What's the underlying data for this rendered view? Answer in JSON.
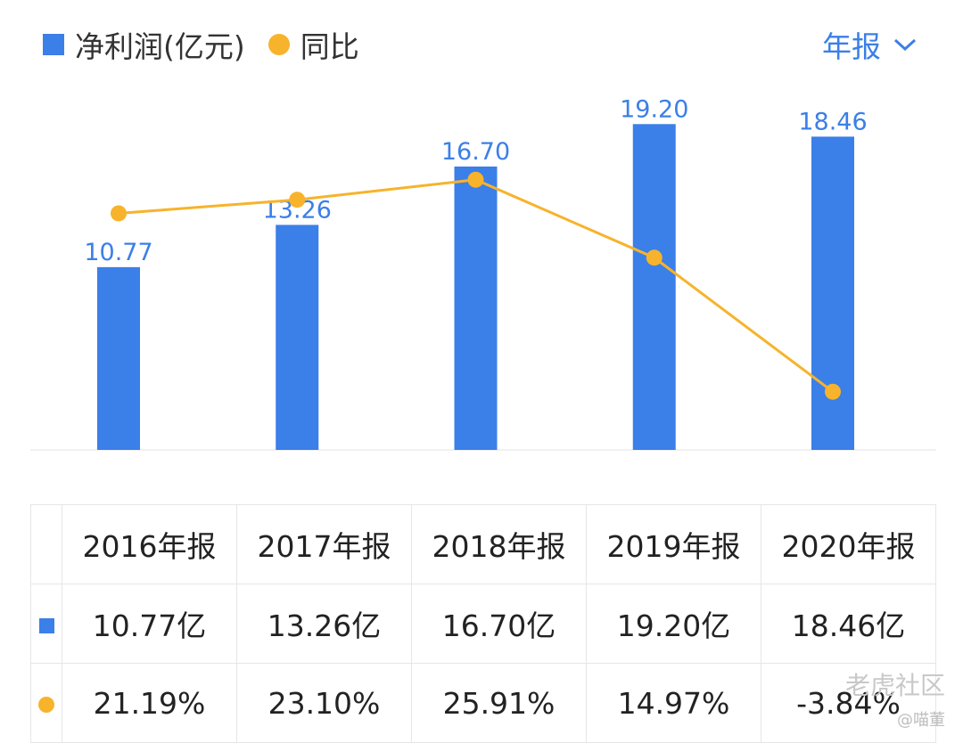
{
  "legend": {
    "bar_label": "净利润(亿元)",
    "line_label": "同比"
  },
  "period_selector": {
    "label": "年报"
  },
  "chart_data": {
    "type": "bar+line",
    "categories": [
      "2016年报",
      "2017年报",
      "2018年报",
      "2019年报",
      "2020年报"
    ],
    "series": [
      {
        "name": "净利润(亿元)",
        "type": "bar",
        "values": [
          10.77,
          13.26,
          16.7,
          19.2,
          18.46
        ],
        "labels": [
          "10.77",
          "13.26",
          "16.70",
          "19.20",
          "18.46"
        ],
        "color": "#3b7fe8"
      },
      {
        "name": "同比",
        "type": "line",
        "values": [
          21.19,
          23.1,
          25.91,
          14.97,
          -3.84
        ],
        "color": "#f7b32b"
      }
    ],
    "bar_ylim": [
      0,
      21
    ],
    "line_ylim": [
      -12,
      38
    ]
  },
  "table": {
    "headers": [
      "2016年报",
      "2017年报",
      "2018年报",
      "2019年报",
      "2020年报"
    ],
    "profit_row": [
      "10.77亿",
      "13.26亿",
      "16.70亿",
      "19.20亿",
      "18.46亿"
    ],
    "yoy_row": [
      {
        "text": "21.19%",
        "sign": "pos"
      },
      {
        "text": "23.10%",
        "sign": "pos"
      },
      {
        "text": "25.91%",
        "sign": "pos"
      },
      {
        "text": "14.97%",
        "sign": "pos"
      },
      {
        "text": "-3.84%",
        "sign": "neg"
      }
    ]
  },
  "watermark": {
    "brand": "老虎社区",
    "user": "@喵董"
  },
  "colors": {
    "bar": "#3b7fe8",
    "line": "#f7b32b",
    "positive": "#d9383a",
    "negative": "#22a86b"
  }
}
